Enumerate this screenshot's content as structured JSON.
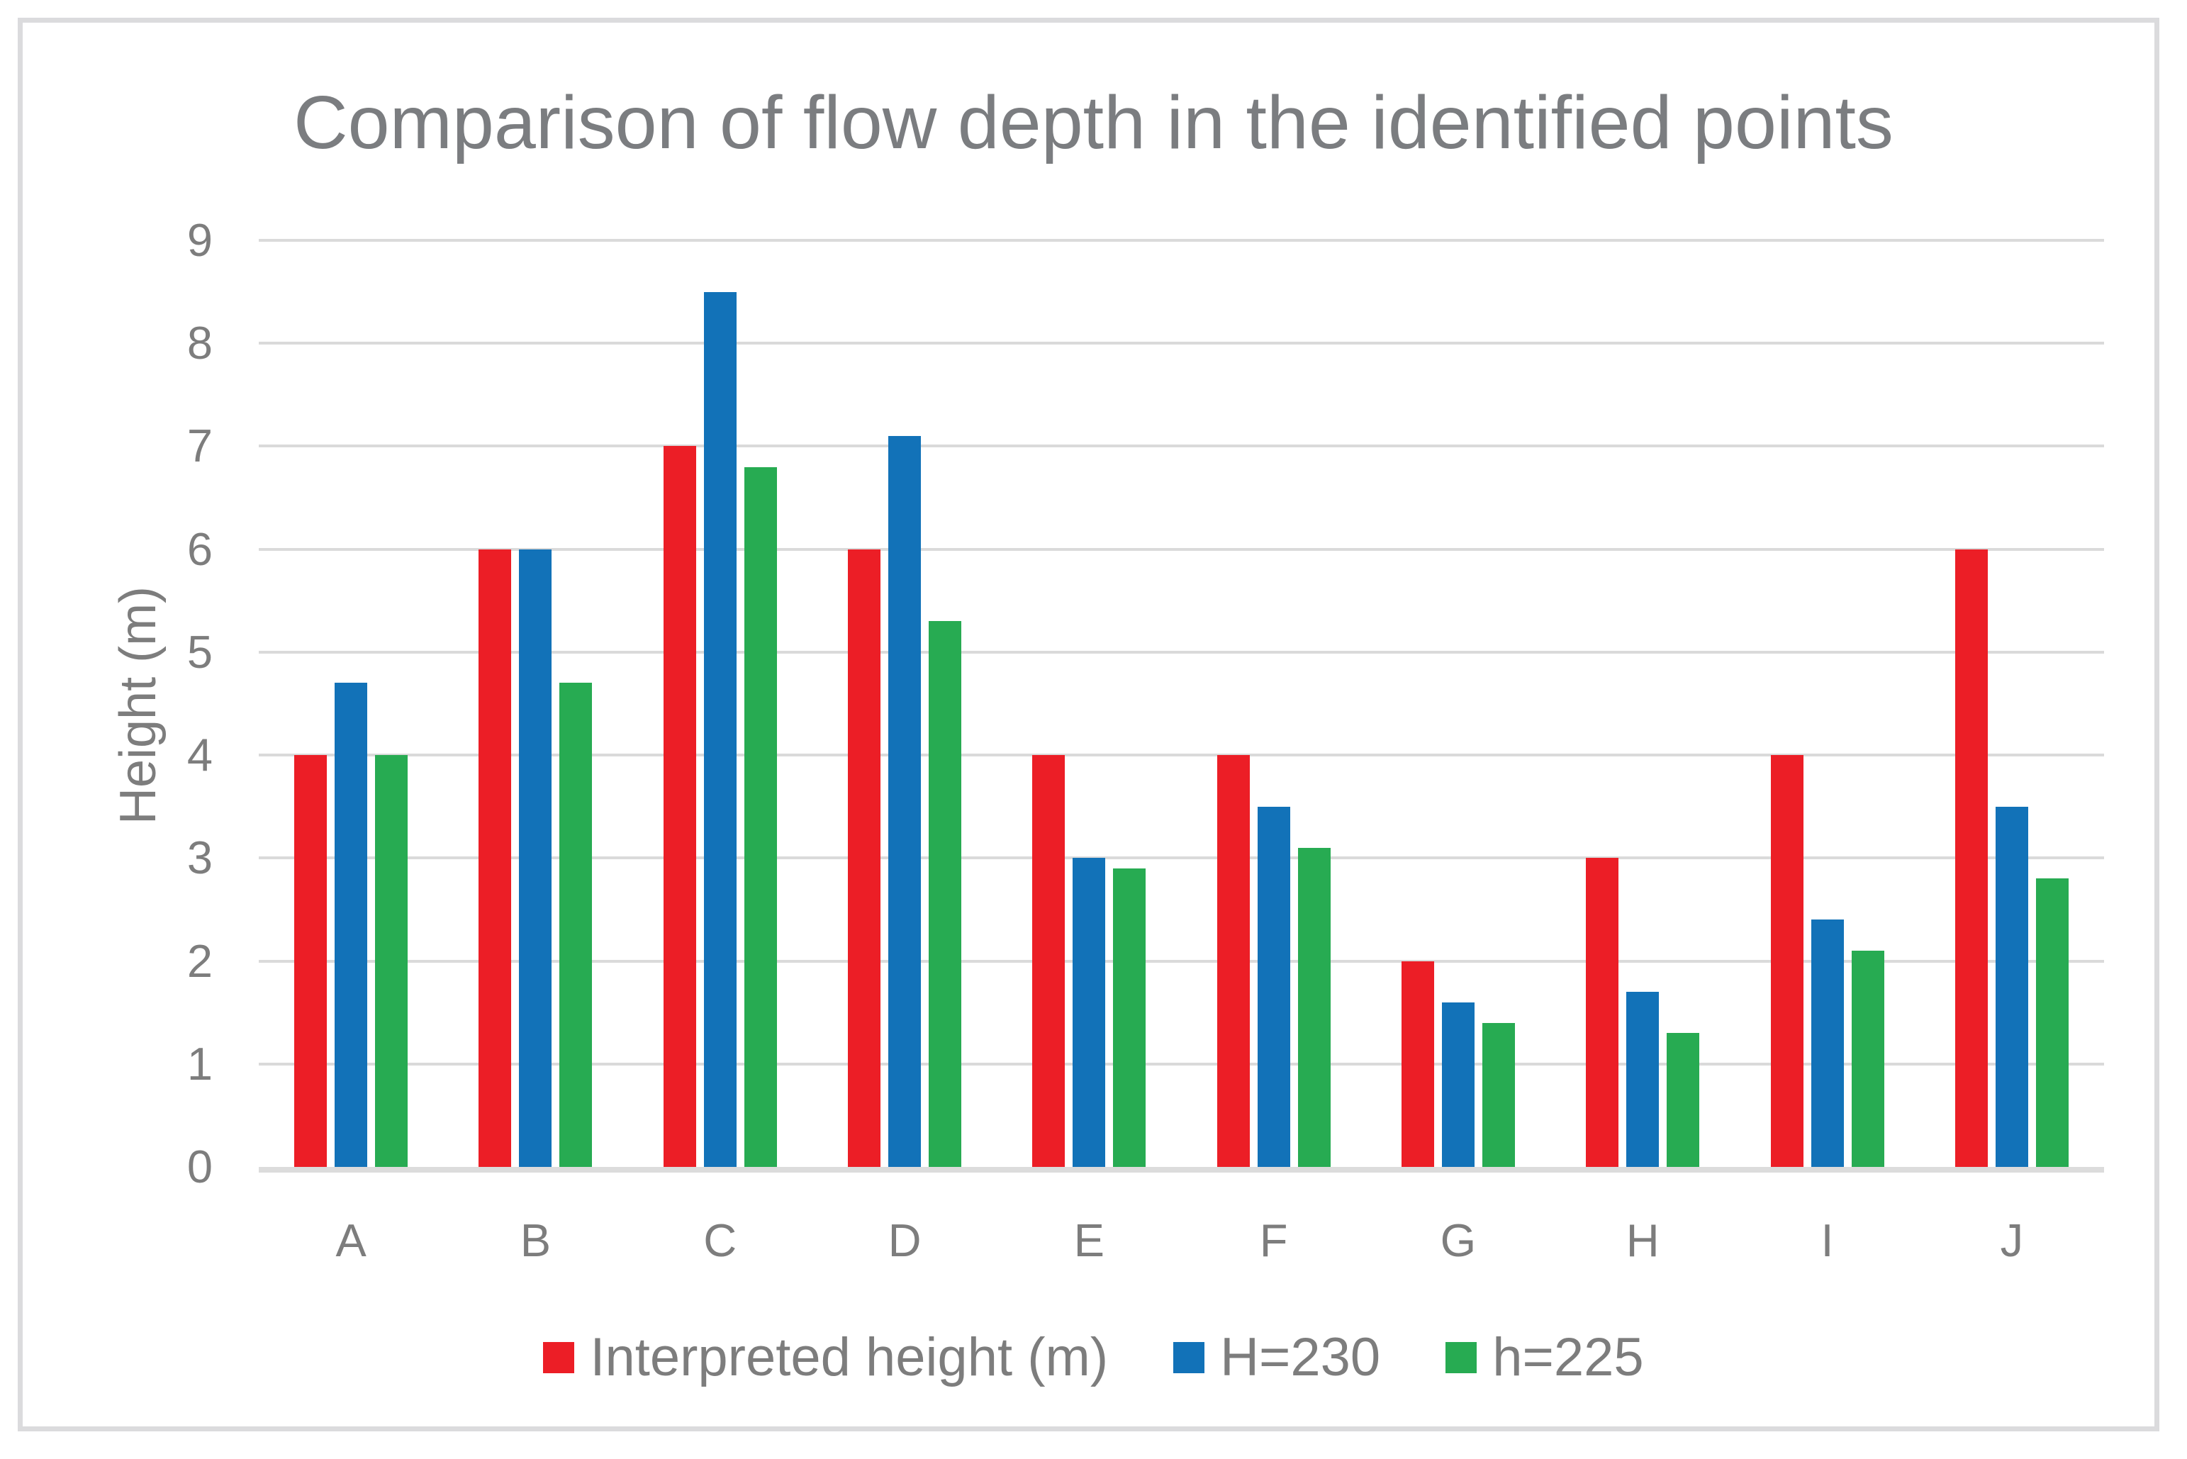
{
  "title": "Comparison of flow depth in the identified points",
  "colors": {
    "series_red": "#ec1e26",
    "series_blue": "#1272b8",
    "series_green": "#27ab52",
    "gridline": "#dadada",
    "axis_line": "#dcdcdc",
    "text_gray": "#7d7d7d",
    "title_gray": "#7b7d80",
    "frame_border": "#dbdbdd"
  },
  "chart_data": {
    "type": "bar",
    "title": "Comparison of flow depth in the identified points",
    "xlabel": "",
    "ylabel": "Height (m)",
    "categories": [
      "A",
      "B",
      "C",
      "D",
      "E",
      "F",
      "G",
      "H",
      "I",
      "J"
    ],
    "series": [
      {
        "name": "Interpreted height (m)",
        "color": "#ec1e26",
        "values": [
          4,
          6,
          7,
          6,
          4,
          4,
          2,
          3,
          4,
          6
        ]
      },
      {
        "name": "H=230",
        "color": "#1272b8",
        "values": [
          4.7,
          6,
          8.5,
          7.1,
          3,
          3.5,
          1.6,
          1.7,
          2.4,
          3.5
        ]
      },
      {
        "name": "h=225",
        "color": "#27ab52",
        "values": [
          4,
          4.7,
          6.8,
          5.3,
          2.9,
          3.1,
          1.4,
          1.3,
          2.1,
          2.8
        ]
      }
    ],
    "ylim": [
      0,
      9
    ],
    "yticks": [
      0,
      1,
      2,
      3,
      4,
      5,
      6,
      7,
      8,
      9
    ],
    "grid": true,
    "legend_position": "bottom"
  }
}
